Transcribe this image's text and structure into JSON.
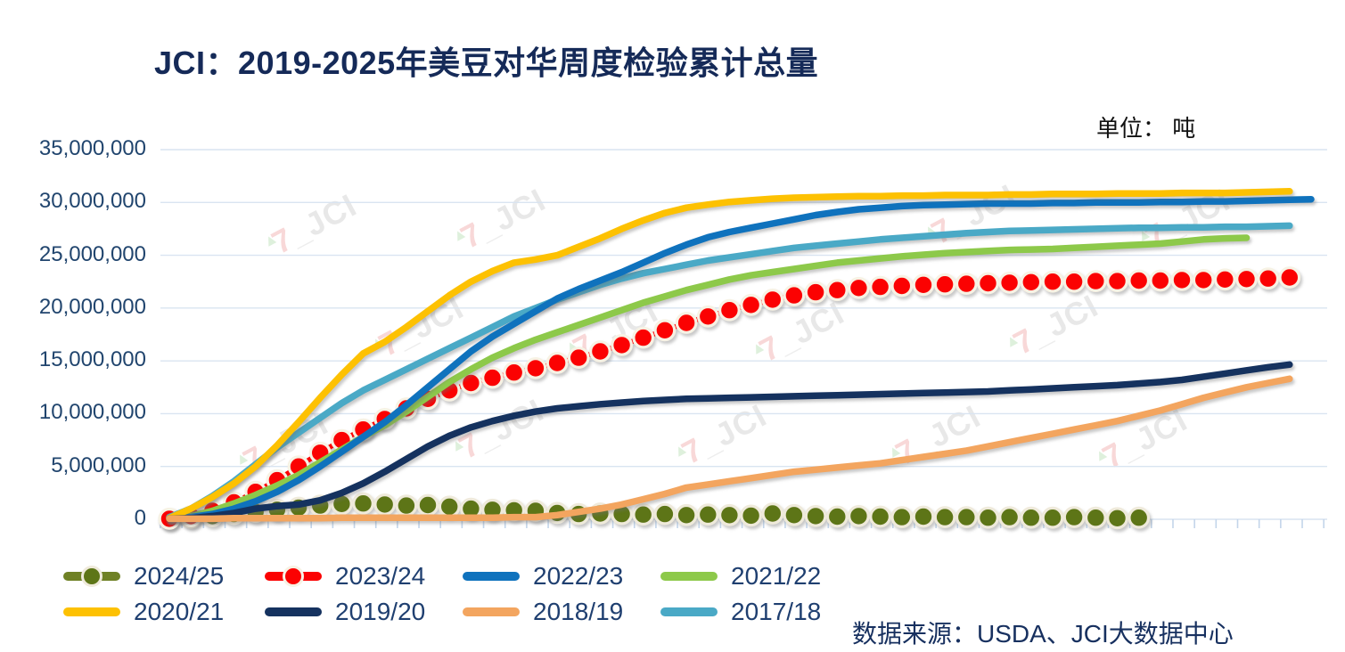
{
  "title": "JCI：2019-2025年美豆对华周度检验累计总量",
  "unit_label": "单位： 吨",
  "source_label": "数据来源：USDA、JCI大数据中心",
  "watermark": {
    "text": "JCI"
  },
  "palette": {
    "grid": "#d9e4f1",
    "axis_tick": "#c3d5ea",
    "axis_text": "#21456e",
    "legend_text": "#1f3f70",
    "title_text": "#152a58"
  },
  "y_axis": {
    "tick_labels": [
      "35,000,000",
      "30,000,000",
      "25,000,000",
      "20,000,000",
      "15,000,000",
      "10,000,000",
      "5,000,000",
      "0"
    ],
    "max": 35000000,
    "min": 0,
    "step": 5000000
  },
  "x_axis": {
    "labels_visible": false,
    "description": "weekly cumulative inspection totals across the marketing year, ~53 weekly ticks, no tick labels shown"
  },
  "chart_data": {
    "type": "line",
    "title": "JCI：2019-2025年美豆对华周度检验累计总量",
    "value_unit": "吨 (tons); series values stored in millions of tons, estimated from axis",
    "ylim": [
      0,
      35000000
    ],
    "grid": "horizontal only",
    "legend_position": "bottom, two rows",
    "series": [
      {
        "name": "2024/25",
        "color": "#6f8125",
        "marker": true,
        "marker_color": "#5d7517",
        "marker_ring": "#efeadb",
        "values": [
          0.05,
          0.15,
          0.3,
          0.5,
          0.7,
          0.9,
          1.1,
          1.3,
          1.45,
          1.5,
          1.4,
          1.3,
          1.35,
          1.2,
          1.0,
          0.9,
          0.85,
          0.8,
          0.6,
          0.5,
          0.55,
          0.5,
          0.45,
          0.5,
          0.4,
          0.45,
          0.4,
          0.35,
          0.55,
          0.4,
          0.3,
          0.25,
          0.3,
          0.25,
          0.2,
          0.25,
          0.2,
          0.2,
          0.15,
          0.2,
          0.15,
          0.15,
          0.2,
          0.15,
          0.1,
          0.15
        ]
      },
      {
        "name": "2023/24",
        "color": "#fb0202",
        "marker": true,
        "marker_color": "#fb0202",
        "marker_ring": "#f7f2e4",
        "values": [
          0.05,
          0.3,
          0.8,
          1.6,
          2.6,
          3.7,
          5.0,
          6.3,
          7.5,
          8.5,
          9.5,
          10.5,
          11.4,
          12.2,
          12.9,
          13.4,
          13.9,
          14.3,
          14.8,
          15.3,
          15.9,
          16.5,
          17.2,
          17.9,
          18.6,
          19.2,
          19.8,
          20.3,
          20.8,
          21.2,
          21.5,
          21.7,
          21.9,
          22.0,
          22.1,
          22.2,
          22.25,
          22.3,
          22.35,
          22.4,
          22.45,
          22.5,
          22.5,
          22.55,
          22.55,
          22.6,
          22.6,
          22.65,
          22.65,
          22.7,
          22.75,
          22.8,
          22.9
        ]
      },
      {
        "name": "2022/23",
        "color": "#0f72bd",
        "marker": false,
        "values": [
          0.05,
          0.2,
          0.5,
          1.0,
          1.7,
          2.6,
          3.7,
          5.0,
          6.4,
          7.8,
          9.2,
          10.8,
          12.5,
          14.2,
          15.9,
          17.3,
          18.5,
          19.7,
          20.9,
          21.8,
          22.6,
          23.4,
          24.3,
          25.2,
          26.0,
          26.7,
          27.2,
          27.6,
          28.0,
          28.4,
          28.8,
          29.1,
          29.35,
          29.5,
          29.65,
          29.75,
          29.8,
          29.85,
          29.9,
          29.9,
          29.9,
          29.95,
          29.95,
          30.0,
          30.0,
          30.0,
          30.05,
          30.05,
          30.1,
          30.1,
          30.15,
          30.2,
          30.25,
          30.3
        ]
      },
      {
        "name": "2021/22",
        "color": "#8dc94a",
        "marker": false,
        "values": [
          0.1,
          0.3,
          0.8,
          1.5,
          2.3,
          3.2,
          4.2,
          5.4,
          6.6,
          7.8,
          8.9,
          10.2,
          11.6,
          13.0,
          14.2,
          15.3,
          16.2,
          17.0,
          17.7,
          18.4,
          19.1,
          19.8,
          20.5,
          21.1,
          21.7,
          22.2,
          22.7,
          23.1,
          23.4,
          23.7,
          24.0,
          24.3,
          24.5,
          24.7,
          24.9,
          25.05,
          25.2,
          25.3,
          25.4,
          25.5,
          25.55,
          25.6,
          25.7,
          25.8,
          25.9,
          26.0,
          26.1,
          26.3,
          26.5,
          26.6,
          26.65
        ]
      },
      {
        "name": "2020/21",
        "color": "#fdc102",
        "marker": false,
        "values": [
          0.1,
          1.0,
          2.1,
          3.4,
          5.0,
          7.0,
          9.2,
          11.5,
          13.7,
          15.7,
          16.8,
          18.2,
          19.7,
          21.2,
          22.5,
          23.5,
          24.3,
          24.6,
          25.0,
          25.8,
          26.6,
          27.5,
          28.3,
          29.0,
          29.5,
          29.8,
          30.05,
          30.2,
          30.35,
          30.45,
          30.5,
          30.55,
          30.6,
          30.6,
          30.65,
          30.65,
          30.7,
          30.7,
          30.7,
          30.75,
          30.75,
          30.8,
          30.8,
          30.8,
          30.85,
          30.85,
          30.85,
          30.9,
          30.9,
          30.9,
          30.95,
          31.0,
          31.05
        ]
      },
      {
        "name": "2019/20",
        "color": "#15325f",
        "marker": false,
        "values": [
          0.05,
          0.1,
          0.3,
          0.6,
          1.0,
          1.25,
          1.4,
          1.8,
          2.5,
          3.4,
          4.5,
          5.7,
          6.9,
          7.9,
          8.7,
          9.3,
          9.8,
          10.2,
          10.5,
          10.7,
          10.9,
          11.05,
          11.2,
          11.3,
          11.4,
          11.45,
          11.5,
          11.55,
          11.6,
          11.65,
          11.7,
          11.75,
          11.8,
          11.85,
          11.9,
          11.95,
          12.0,
          12.05,
          12.1,
          12.2,
          12.3,
          12.4,
          12.5,
          12.6,
          12.7,
          12.85,
          13.0,
          13.2,
          13.5,
          13.8,
          14.1,
          14.4,
          14.65
        ]
      },
      {
        "name": "2018/19",
        "color": "#f3a55f",
        "marker": false,
        "values": [
          0.05,
          0.05,
          0.05,
          0.1,
          0.1,
          0.1,
          0.1,
          0.1,
          0.15,
          0.15,
          0.15,
          0.15,
          0.15,
          0.15,
          0.15,
          0.15,
          0.2,
          0.2,
          0.4,
          0.7,
          1.0,
          1.4,
          1.9,
          2.4,
          3.0,
          3.3,
          3.6,
          3.9,
          4.2,
          4.5,
          4.7,
          4.9,
          5.1,
          5.3,
          5.6,
          5.9,
          6.2,
          6.5,
          6.9,
          7.3,
          7.7,
          8.1,
          8.5,
          8.9,
          9.3,
          9.8,
          10.3,
          10.9,
          11.5,
          12.0,
          12.5,
          12.9,
          13.3
        ]
      },
      {
        "name": "2017/18",
        "color": "#4aa9c6",
        "marker": false,
        "values": [
          0.2,
          1.0,
          2.2,
          3.6,
          5.2,
          6.8,
          8.2,
          9.6,
          11.0,
          12.2,
          13.2,
          14.2,
          15.2,
          16.2,
          17.2,
          18.2,
          19.2,
          20.0,
          20.8,
          21.5,
          22.2,
          22.8,
          23.3,
          23.7,
          24.1,
          24.5,
          24.8,
          25.1,
          25.4,
          25.7,
          25.9,
          26.1,
          26.3,
          26.5,
          26.65,
          26.8,
          26.95,
          27.1,
          27.2,
          27.3,
          27.35,
          27.4,
          27.45,
          27.5,
          27.55,
          27.6,
          27.6,
          27.65,
          27.65,
          27.7,
          27.7,
          27.75,
          27.8
        ]
      }
    ]
  }
}
